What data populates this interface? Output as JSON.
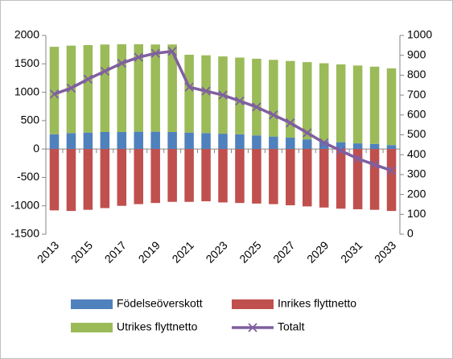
{
  "chart_data": {
    "type": "bar",
    "stacked": true,
    "categories": [
      "2013",
      null,
      "2015",
      null,
      "2017",
      null,
      "2019",
      null,
      "2021",
      null,
      "2023",
      null,
      "2025",
      null,
      "2027",
      null,
      "2029",
      null,
      "2031",
      null,
      "2033"
    ],
    "series": [
      {
        "name": "Födelseöverskott",
        "color": "#4f81bd",
        "values": [
          260,
          280,
          290,
          300,
          300,
          305,
          305,
          300,
          290,
          280,
          270,
          260,
          240,
          220,
          200,
          170,
          140,
          120,
          100,
          90,
          70
        ]
      },
      {
        "name": "Inrikes flyttnetto",
        "color": "#c0504d",
        "values": [
          -1080,
          -1090,
          -1070,
          -1040,
          -1000,
          -970,
          -950,
          -930,
          -930,
          -920,
          -940,
          -950,
          -960,
          -970,
          -990,
          -1010,
          -1030,
          -1050,
          -1060,
          -1070,
          -1090
        ]
      },
      {
        "name": "Utrikes flyttnetto",
        "color": "#9bbb59",
        "values": [
          1540,
          1540,
          1540,
          1540,
          1545,
          1540,
          1535,
          1540,
          1370,
          1370,
          1360,
          1350,
          1350,
          1350,
          1350,
          1360,
          1370,
          1370,
          1370,
          1360,
          1350
        ]
      },
      {
        "name": "Totalt",
        "color": "#7f5fa0",
        "type": "line",
        "axis": "y2",
        "values": [
          705,
          735,
          780,
          820,
          860,
          890,
          910,
          920,
          740,
          720,
          700,
          670,
          640,
          600,
          560,
          510,
          460,
          420,
          380,
          350,
          320
        ]
      }
    ],
    "ylim": [
      -1500,
      2000
    ],
    "yticks": [
      -1500,
      -1000,
      -500,
      0,
      500,
      1000,
      1500,
      2000
    ],
    "y2lim": [
      0,
      1000
    ],
    "y2ticks": [
      0,
      100,
      200,
      300,
      400,
      500,
      600,
      700,
      800,
      900,
      1000
    ]
  }
}
